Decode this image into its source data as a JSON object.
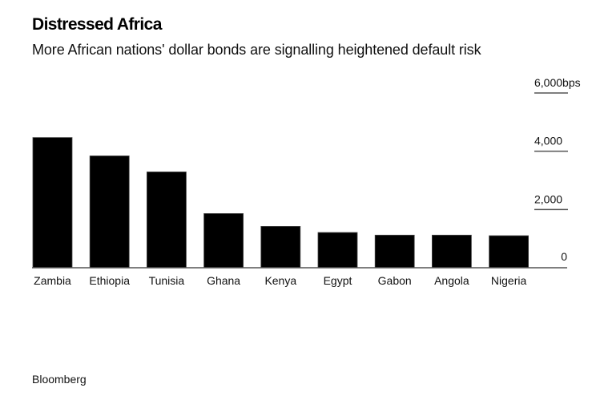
{
  "header": {
    "title": "Distressed Africa",
    "subtitle": "More African nations' dollar bonds are signalling heightened default risk"
  },
  "footer": {
    "source": "Bloomberg"
  },
  "colors": {
    "bar": "#000000",
    "axis": "#555555"
  },
  "chart_data": {
    "type": "bar",
    "title": "Distressed Africa",
    "subtitle": "More African nations' dollar bonds are signalling heightened default risk",
    "xlabel": "",
    "ylabel": "bps",
    "unit": "bps",
    "categories": [
      "Zambia",
      "Ethiopia",
      "Tunisia",
      "Ghana",
      "Kenya",
      "Egypt",
      "Gabon",
      "Angola",
      "Nigeria"
    ],
    "values": [
      4470,
      3840,
      3290,
      1860,
      1420,
      1210,
      1120,
      1120,
      1100
    ],
    "ylim": [
      0,
      6000
    ],
    "yticks": [
      {
        "value": 0,
        "label": "0"
      },
      {
        "value": 2000,
        "label": "2,000"
      },
      {
        "value": 4000,
        "label": "4,000"
      },
      {
        "value": 6000,
        "label": "6,000bps"
      }
    ],
    "axis_side": "right",
    "grid": false,
    "legend": "none"
  }
}
